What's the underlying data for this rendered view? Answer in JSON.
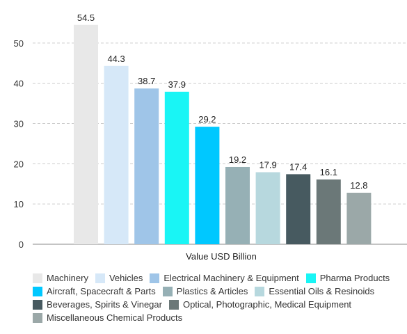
{
  "chart_data": {
    "type": "bar",
    "xlabel": "Value USD Billion",
    "ylim": [
      0,
      60
    ],
    "yticks": [
      0,
      10,
      20,
      30,
      40,
      50
    ],
    "grid": true,
    "legend_position": "bottom",
    "categories": [
      "Machinery",
      "Vehicles",
      "Electrical Machinery & Equipment",
      "Pharma Products",
      "Aircraft, Spacecraft & Parts",
      "Plastics & Articles",
      "Essential Oils & Resinoids",
      "Beverages, Spirits & Vinegar",
      "Optical, Photographic, Medical Equipment",
      "Miscellaneous Chemical Products"
    ],
    "values": [
      54.5,
      44.3,
      38.7,
      37.9,
      29.2,
      19.2,
      17.9,
      17.4,
      16.1,
      12.8
    ],
    "colors": [
      "#e8e8e8",
      "#d6e8f8",
      "#9fc5e8",
      "#19f5f5",
      "#00c8ff",
      "#96b0b5",
      "#b7d8de",
      "#475a60",
      "#6b7878",
      "#9ba8a8"
    ]
  }
}
